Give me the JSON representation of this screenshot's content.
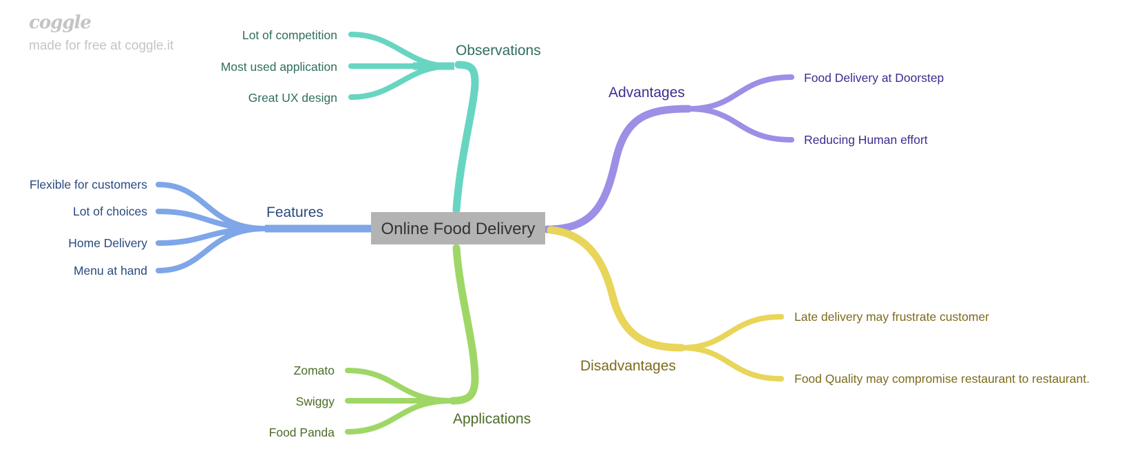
{
  "watermark": {
    "logo": "coggle",
    "tagline": "made for free at coggle.it"
  },
  "central": {
    "label": "Online Food Delivery"
  },
  "branches": {
    "observations": {
      "label": "Observations",
      "color": "#67d5c1",
      "text_color": "#2f6e5f",
      "children": [
        "Lot of competition",
        "Most used application",
        "Great UX design"
      ]
    },
    "advantages": {
      "label": "Advantages",
      "color": "#9b8fe6",
      "text_color": "#3b2e8f",
      "children": [
        "Food Delivery at Doorstep",
        "Reducing Human effort"
      ]
    },
    "features": {
      "label": "Features",
      "color": "#7ea6e8",
      "text_color": "#2a4a7e",
      "children": [
        "Flexible for customers",
        "Lot of choices",
        "Home Delivery",
        "Menu at hand"
      ]
    },
    "disadvantages": {
      "label": "Disadvantages",
      "color": "#e8d55a",
      "text_color": "#7d6a1c",
      "children": [
        "Late delivery may frustrate customer",
        "Food Quality may compromise restaurant to restaurant."
      ]
    },
    "applications": {
      "label": "Applications",
      "color": "#9fd767",
      "text_color": "#4c6b26",
      "children": [
        "Zomato",
        "Swiggy",
        "Food Panda"
      ]
    }
  }
}
